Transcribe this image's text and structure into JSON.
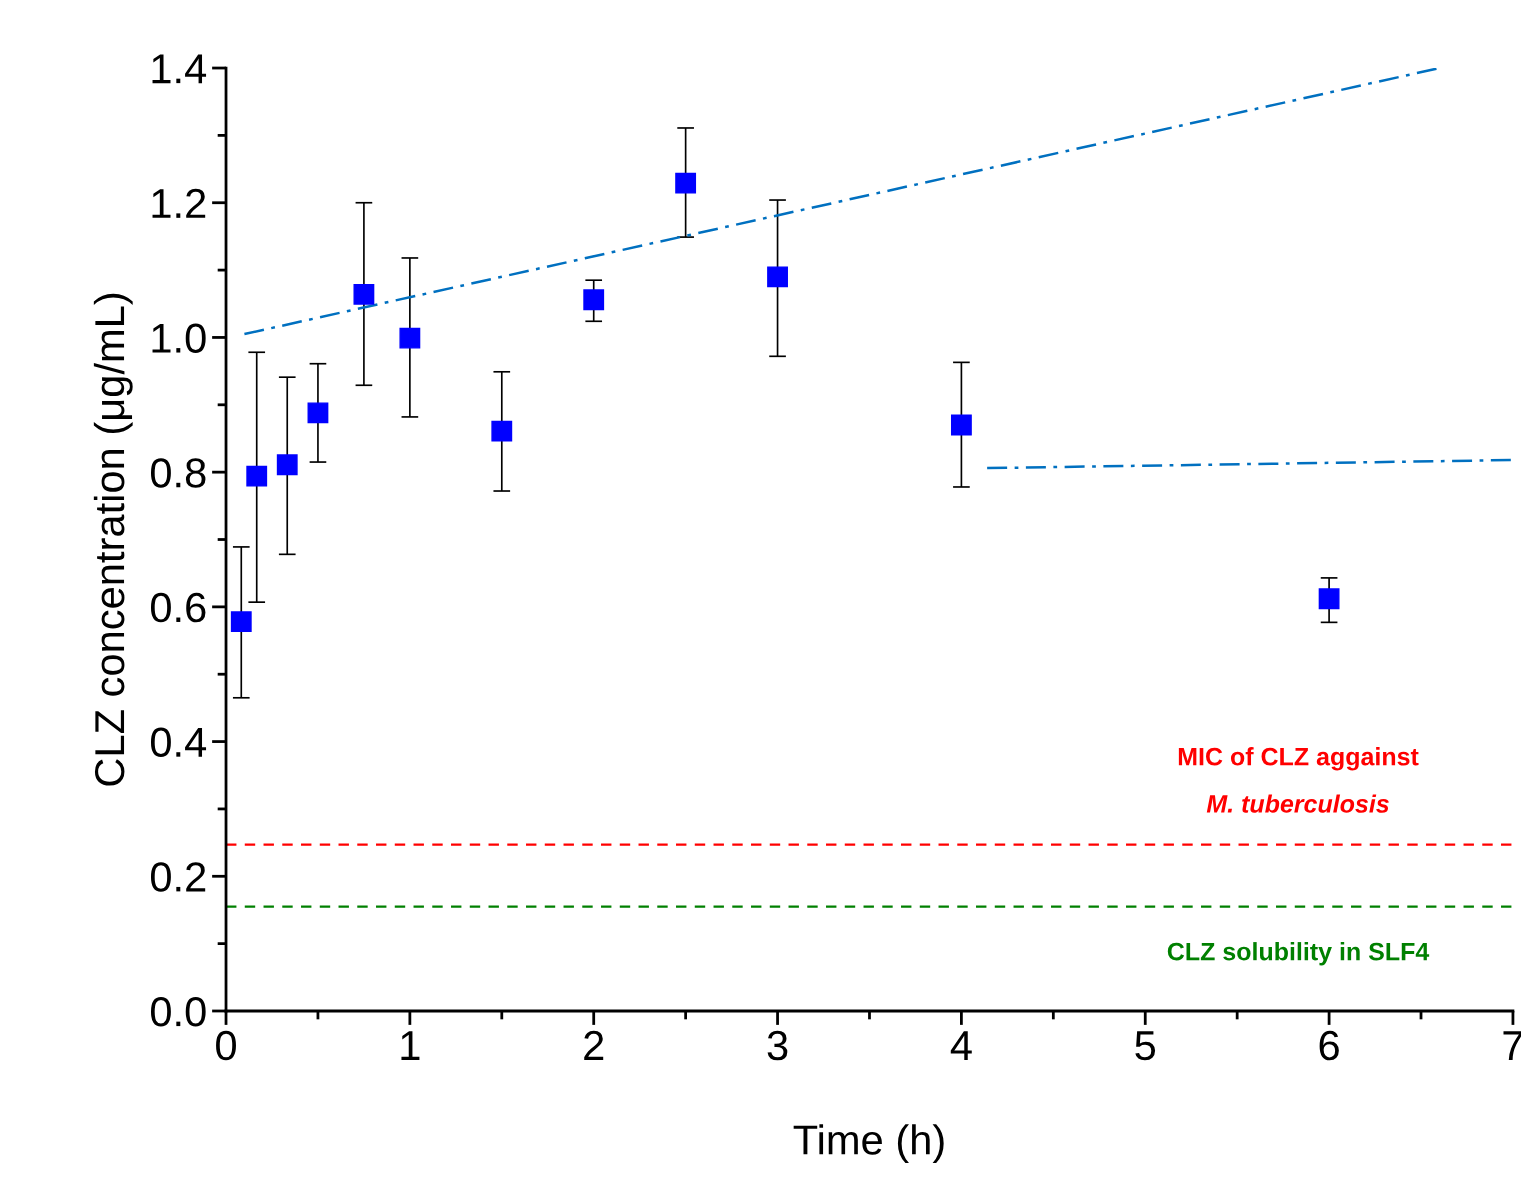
{
  "chart_data": {
    "type": "scatter",
    "xlabel": "Time (h)",
    "ylabel": "CLZ concentration (μg/mL)",
    "xlim": [
      0,
      7
    ],
    "ylim": [
      0,
      1.4
    ],
    "xticks": [
      0,
      1,
      2,
      3,
      4,
      5,
      6,
      7
    ],
    "yticks": [
      {
        "value": 0,
        "label": "0.0"
      },
      {
        "value": 0.2,
        "label": "0.2"
      },
      {
        "value": 0.4,
        "label": "0.4"
      },
      {
        "value": 0.6,
        "label": "0.6"
      },
      {
        "value": 0.8,
        "label": "0.8"
      },
      {
        "value": 1.0,
        "label": "1.0"
      },
      {
        "value": 1.2,
        "label": "1.2"
      },
      {
        "value": 1.4,
        "label": "1.4"
      }
    ],
    "grid": false,
    "marker": "square",
    "series": [
      {
        "color": "#0000ff",
        "x": [
          0.083,
          0.167,
          0.333,
          0.5,
          0.75,
          1,
          1.5,
          2,
          2.5,
          3,
          4,
          6
        ],
        "values": [
          0.578,
          0.794,
          0.811,
          0.888,
          1.064,
          0.999,
          0.861,
          1.056,
          1.229,
          1.09,
          0.87,
          0.612
        ],
        "errors": [
          [
            0.465,
            0.689
          ],
          [
            0.607,
            0.978
          ],
          [
            0.678,
            0.941
          ],
          [
            0.815,
            0.961
          ],
          [
            0.929,
            1.2
          ],
          [
            0.882,
            1.118
          ],
          [
            0.772,
            0.949
          ],
          [
            1.024,
            1.085
          ],
          [
            1.149,
            1.311
          ],
          [
            0.972,
            1.204
          ],
          [
            0.778,
            0.963
          ],
          [
            0.577,
            0.643
          ]
        ]
      },
      {
        "type": "line",
        "color": "#0070c0",
        "line_style": "dashdot",
        "marker": "none",
        "x": [
          0.1,
          6.6
        ],
        "values": [
          1.005,
          1.4
        ]
      },
      {
        "type": "line",
        "color": "#0070c0",
        "line_style": "dashdot",
        "marker": "none",
        "x": [
          4.14,
          7
        ],
        "values": [
          0.806,
          0.818
        ]
      }
    ],
    "ref_lines": [
      {
        "axis": "y",
        "value": 0.247,
        "label": "MIC of CLZ aggainst\nM. tuberculosis",
        "color": "#ff0000",
        "line_style": "dashed"
      },
      {
        "axis": "y",
        "value": 0.155,
        "label": "CLZ solubility in SLF4",
        "color": "#008000",
        "line_style": "dashed"
      }
    ]
  }
}
